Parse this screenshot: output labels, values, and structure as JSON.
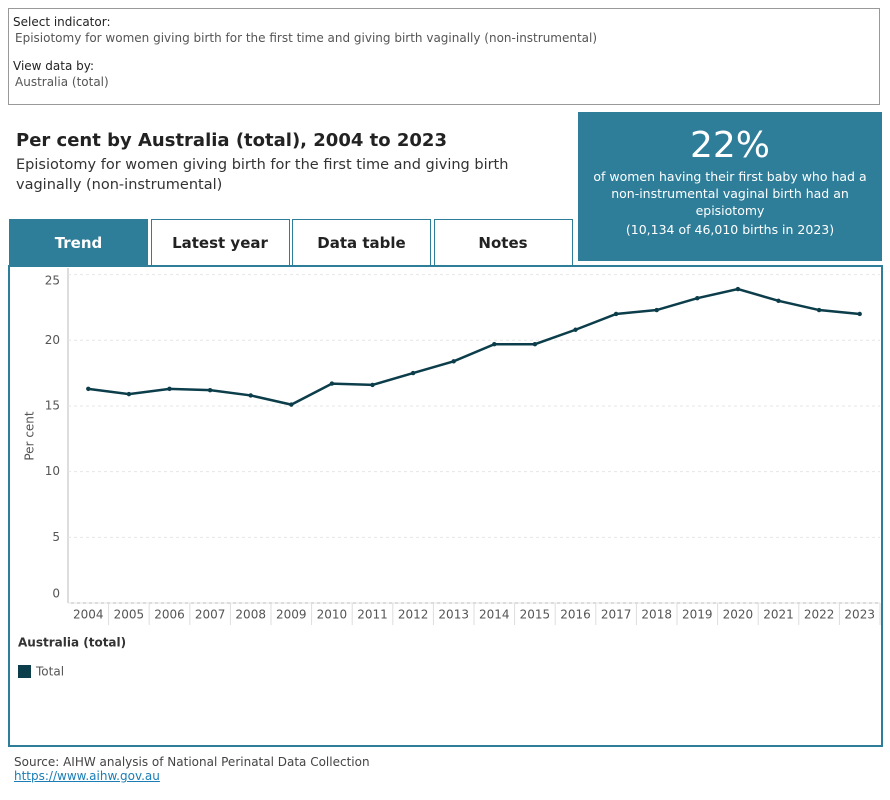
{
  "selector": {
    "label": "Select indicator:",
    "value": "Episiotomy for women giving birth for the first time and giving birth vaginally (non-instrumental)"
  },
  "view": {
    "label": "View data by:",
    "value": "Australia (total)"
  },
  "heading": {
    "title": "Per cent by Australia (total), 2004 to 2023",
    "subtitle": "Episiotomy for women giving birth for the first time and giving birth vaginally (non-instrumental)"
  },
  "kpi": {
    "value": "22%",
    "text": "of women having their first baby who had a non-instrumental vaginal birth had an episiotomy",
    "note": "(10,134 of 46,010 births in 2023)"
  },
  "tabs": [
    "Trend",
    "Latest year",
    "Data table",
    "Notes"
  ],
  "chart_data": {
    "type": "line",
    "y_label": "Per cent",
    "legend_title": "Australia (total)",
    "categories": [
      "2004",
      "2005",
      "2006",
      "2007",
      "2008",
      "2009",
      "2010",
      "2011",
      "2012",
      "2013",
      "2014",
      "2015",
      "2016",
      "2017",
      "2018",
      "2019",
      "2020",
      "2021",
      "2022",
      "2023"
    ],
    "series": [
      {
        "name": "Total",
        "color": "#0b3d4a",
        "values": [
          16.3,
          15.9,
          16.3,
          16.2,
          15.8,
          15.1,
          16.7,
          16.6,
          17.5,
          18.4,
          19.7,
          19.7,
          20.8,
          22.0,
          22.3,
          23.2,
          23.9,
          23.0,
          22.3,
          22.0
        ]
      }
    ],
    "ylim": [
      0,
      25.5
    ],
    "yticks": [
      0,
      5,
      10,
      15,
      20,
      25
    ],
    "grid": true
  },
  "footer": {
    "source": "Source: AIHW analysis of National Perinatal Data Collection",
    "link": "https://www.aihw.gov.au"
  }
}
